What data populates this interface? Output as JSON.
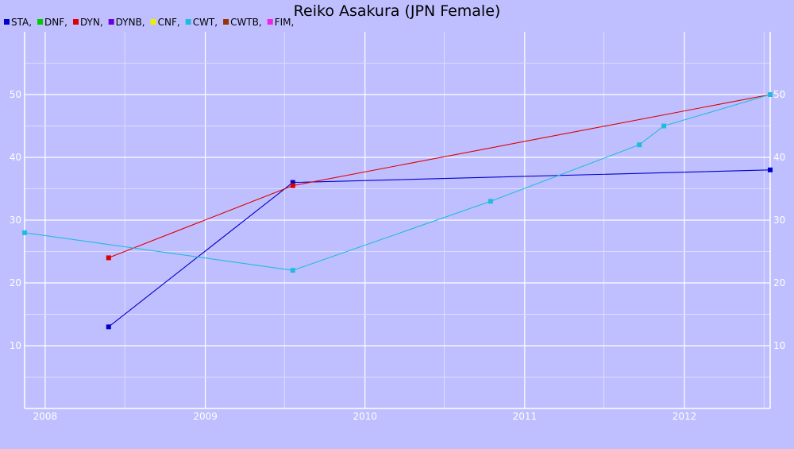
{
  "chart_data": {
    "type": "line",
    "title": "Reiko Asakura (JPN Female)",
    "xlabel": "",
    "ylabel": "",
    "x_axis": "date",
    "xlim": [
      "2007-11-15",
      "2012-07-15"
    ],
    "ylim": [
      0,
      60
    ],
    "y_ticks": [
      10,
      20,
      30,
      40,
      50
    ],
    "x_ticks": [
      "2008",
      "2009",
      "2010",
      "2011",
      "2012"
    ],
    "grid": true,
    "legend_position": "top-left",
    "legend": [
      {
        "label": "STA,",
        "color": "#0000cc"
      },
      {
        "label": "DNF,",
        "color": "#00cc00"
      },
      {
        "label": "DYN,",
        "color": "#dd0000"
      },
      {
        "label": "DYNB,",
        "color": "#6a00dd"
      },
      {
        "label": "CNF,",
        "color": "#eeee00"
      },
      {
        "label": "CWT,",
        "color": "#22bbdd"
      },
      {
        "label": "CWTB,",
        "color": "#993300"
      },
      {
        "label": "FIM,",
        "color": "#ee22ee"
      }
    ],
    "series": [
      {
        "name": "STA",
        "color": "#0000cc",
        "points": [
          {
            "x": "2008-05-25",
            "y": 13
          },
          {
            "x": "2009-07-20",
            "y": 36
          },
          {
            "x": "2012-07-15",
            "y": 38
          }
        ]
      },
      {
        "name": "DYN",
        "color": "#dd0000",
        "points": [
          {
            "x": "2008-05-25",
            "y": 24
          },
          {
            "x": "2009-07-20",
            "y": 35.5
          },
          {
            "x": "2012-07-15",
            "y": 50
          }
        ]
      },
      {
        "name": "CWT",
        "color": "#22bbdd",
        "points": [
          {
            "x": "2007-11-15",
            "y": 28
          },
          {
            "x": "2009-07-20",
            "y": 22
          },
          {
            "x": "2010-10-15",
            "y": 33
          },
          {
            "x": "2011-09-20",
            "y": 42
          },
          {
            "x": "2011-11-15",
            "y": 45
          },
          {
            "x": "2012-07-15",
            "y": 50
          }
        ]
      }
    ]
  }
}
